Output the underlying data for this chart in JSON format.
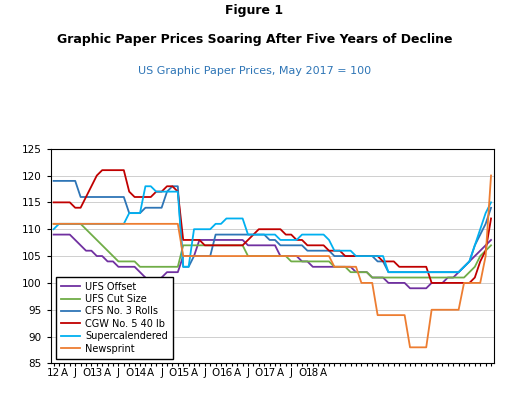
{
  "title_line1": "Figure 1",
  "title_line2": "Graphic Paper Prices Soaring After Five Years of Decline",
  "subtitle": "US Graphic Paper Prices, May 2017 = 100",
  "ylim": [
    85,
    125
  ],
  "yticks": [
    85,
    90,
    95,
    100,
    105,
    110,
    115,
    120,
    125
  ],
  "background_color": "#ffffff",
  "series": {
    "UFS Offset": {
      "color": "#7030A0",
      "linewidth": 1.3,
      "values": [
        109,
        109,
        109,
        109,
        108,
        107,
        106,
        106,
        105,
        105,
        104,
        104,
        103,
        103,
        103,
        103,
        102,
        101,
        100,
        100,
        101,
        102,
        102,
        102,
        105,
        105,
        105,
        108,
        108,
        108,
        108,
        108,
        108,
        108,
        108,
        108,
        107,
        107,
        107,
        107,
        107,
        107,
        105,
        105,
        105,
        105,
        104,
        104,
        103,
        103,
        103,
        103,
        103,
        103,
        103,
        103,
        102,
        102,
        102,
        101,
        101,
        101,
        100,
        100,
        100,
        100,
        99,
        99,
        99,
        99,
        100,
        100,
        100,
        101,
        101,
        102,
        103,
        104,
        105,
        106,
        107,
        108
      ]
    },
    "UFS Cut Size": {
      "color": "#70AD47",
      "linewidth": 1.3,
      "values": [
        111,
        111,
        111,
        111,
        111,
        111,
        110,
        109,
        108,
        107,
        106,
        105,
        104,
        104,
        104,
        104,
        103,
        103,
        103,
        103,
        103,
        103,
        103,
        103,
        107,
        107,
        107,
        107,
        107,
        107,
        107,
        107,
        107,
        107,
        107,
        107,
        105,
        105,
        105,
        105,
        105,
        105,
        105,
        105,
        104,
        104,
        104,
        104,
        104,
        104,
        104,
        104,
        103,
        103,
        103,
        102,
        102,
        102,
        102,
        101,
        101,
        101,
        101,
        101,
        101,
        101,
        101,
        101,
        101,
        101,
        101,
        101,
        101,
        101,
        101,
        101,
        101,
        102,
        103,
        105,
        106,
        107
      ]
    },
    "CFS No. 3 Rolls": {
      "color": "#2E75B6",
      "linewidth": 1.3,
      "values": [
        119,
        119,
        119,
        119,
        119,
        116,
        116,
        116,
        116,
        116,
        116,
        116,
        116,
        116,
        113,
        113,
        113,
        114,
        114,
        114,
        114,
        117,
        118,
        118,
        103,
        103,
        105,
        105,
        105,
        105,
        109,
        109,
        109,
        109,
        109,
        109,
        109,
        109,
        109,
        109,
        108,
        108,
        107,
        107,
        107,
        107,
        107,
        106,
        106,
        106,
        106,
        106,
        105,
        105,
        105,
        105,
        105,
        105,
        105,
        105,
        104,
        104,
        102,
        102,
        102,
        102,
        102,
        102,
        102,
        102,
        102,
        102,
        102,
        102,
        102,
        102,
        103,
        104,
        107,
        109,
        111,
        114
      ]
    },
    "CGW No. 5 40 lb": {
      "color": "#C00000",
      "linewidth": 1.3,
      "values": [
        115,
        115,
        115,
        115,
        114,
        114,
        116,
        118,
        120,
        121,
        121,
        121,
        121,
        121,
        117,
        116,
        116,
        116,
        116,
        117,
        117,
        118,
        118,
        117,
        108,
        108,
        108,
        108,
        107,
        107,
        107,
        107,
        107,
        107,
        107,
        107,
        108,
        109,
        110,
        110,
        110,
        110,
        110,
        109,
        109,
        108,
        108,
        107,
        107,
        107,
        107,
        106,
        106,
        106,
        105,
        105,
        105,
        105,
        105,
        105,
        105,
        104,
        104,
        104,
        103,
        103,
        103,
        103,
        103,
        103,
        100,
        100,
        100,
        100,
        100,
        100,
        100,
        100,
        101,
        104,
        106,
        112
      ]
    },
    "Supercalendered": {
      "color": "#00B0F0",
      "linewidth": 1.3,
      "values": [
        110,
        111,
        111,
        111,
        111,
        111,
        111,
        111,
        111,
        111,
        111,
        111,
        111,
        111,
        113,
        113,
        113,
        118,
        118,
        117,
        117,
        117,
        117,
        117,
        103,
        103,
        110,
        110,
        110,
        110,
        111,
        111,
        112,
        112,
        112,
        112,
        109,
        109,
        109,
        109,
        109,
        109,
        108,
        108,
        108,
        108,
        109,
        109,
        109,
        109,
        109,
        108,
        106,
        106,
        106,
        106,
        105,
        105,
        105,
        105,
        105,
        105,
        102,
        102,
        102,
        102,
        102,
        102,
        102,
        102,
        102,
        102,
        102,
        102,
        102,
        102,
        103,
        104,
        107,
        110,
        113,
        115
      ]
    },
    "Newsprint": {
      "color": "#ED7D31",
      "linewidth": 1.3,
      "values": [
        111,
        111,
        111,
        111,
        111,
        111,
        111,
        111,
        111,
        111,
        111,
        111,
        111,
        111,
        111,
        111,
        111,
        111,
        111,
        111,
        111,
        111,
        111,
        111,
        105,
        105,
        105,
        105,
        105,
        105,
        105,
        105,
        105,
        105,
        105,
        105,
        105,
        105,
        105,
        105,
        105,
        105,
        105,
        105,
        105,
        105,
        105,
        105,
        105,
        105,
        105,
        105,
        103,
        103,
        103,
        103,
        103,
        100,
        100,
        100,
        94,
        94,
        94,
        94,
        94,
        94,
        88,
        88,
        88,
        88,
        95,
        95,
        95,
        95,
        95,
        95,
        100,
        100,
        100,
        100,
        105,
        120
      ]
    }
  },
  "x_tick_labels": [
    "12",
    "A",
    "J",
    "O",
    "13",
    "A",
    "J",
    "O",
    "14",
    "A",
    "J",
    "O",
    "15",
    "A",
    "J",
    "O",
    "16",
    "A",
    "J",
    "O",
    "17",
    "A",
    "J",
    "O",
    "18",
    "A"
  ],
  "x_tick_positions": [
    0,
    2,
    4,
    6,
    8,
    10,
    12,
    14,
    16,
    18,
    20,
    22,
    24,
    26,
    28,
    30,
    32,
    34,
    36,
    38,
    40,
    42,
    44,
    46,
    48,
    50
  ],
  "n_points": 82,
  "title_fontsize": 9,
  "subtitle_fontsize": 8,
  "tick_fontsize": 7.5,
  "legend_fontsize": 7
}
